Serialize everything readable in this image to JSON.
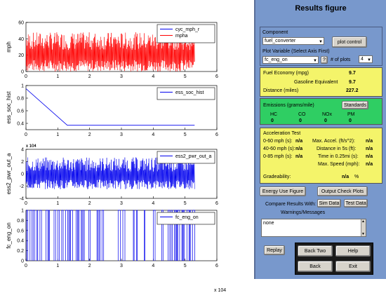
{
  "panel": {
    "title": "Results figure",
    "component_label": "Component",
    "component_value": "fuel_converter",
    "plot_control_label": "plot control",
    "plot_variable_label": "Plot Variable (Select Axis First)",
    "plot_variable_value": "fc_eng_on",
    "help_q": "?",
    "num_plots_label": "# of plots",
    "num_plots_value": "4",
    "fuel_economy_label": "Fuel Economy (mpg)",
    "fuel_economy_value": "9.7",
    "gas_equiv_label": "Gasoline Equivalent",
    "gas_equiv_value": "9.7",
    "distance_label": "Distance (miles)",
    "distance_value": "227.2",
    "emissions_label": "Emissions (grams/mile)",
    "standards_label": "Standards",
    "emissions": [
      {
        "name": "HC",
        "value": "0"
      },
      {
        "name": "CO",
        "value": "0"
      },
      {
        "name": "NOx",
        "value": "0"
      },
      {
        "name": "PM",
        "value": "0"
      }
    ],
    "accel_title": "Acceleration Test",
    "accel_left": [
      {
        "label": "0-60 mph (s):",
        "value": "n/a"
      },
      {
        "label": "40-60 mph (s):",
        "value": "n/a"
      },
      {
        "label": "0-85 mph (s):",
        "value": "n/a"
      }
    ],
    "accel_right": [
      {
        "label": "Max. Accel. (ft/s^2):",
        "value": "n/a"
      },
      {
        "label": "Distance in 5s (ft):",
        "value": "n/a"
      },
      {
        "label": "Time in 0.25mi (s):",
        "value": "n/a"
      },
      {
        "label": "Max. Speed (mph):",
        "value": "n/a"
      }
    ],
    "gradeability_label": "Gradeability:",
    "gradeability_value": "n/a",
    "gradeability_unit": "%",
    "energy_use_label": "Energy Use Figure",
    "output_check_label": "Output Check Plots",
    "compare_label": "Compare Results With:",
    "sim_data_label": "Sim Data",
    "test_data_label": "Test Data",
    "warnings_label": "Warnings/Messages",
    "warnings_value": "none",
    "replay_label": "Replay",
    "back_two_label": "Back Two",
    "help_label": "Help",
    "back_label": "Back",
    "exit_label": "Exit"
  },
  "colors": {
    "panel_bg": "#7898cc",
    "yellow": "#f4f46a",
    "green": "#2fce63",
    "red_series": "#ff0000",
    "blue_series": "#0000ee"
  },
  "chart_data": [
    {
      "type": "line",
      "ylabel": "mph",
      "xlim": [
        0,
        6
      ],
      "ylim": [
        0,
        60
      ],
      "yticks": [
        "0",
        "20",
        "40",
        "60"
      ],
      "xticks": [
        "0",
        "1",
        "2",
        "3",
        "4",
        "5",
        "6"
      ],
      "legend": [
        "cyc_mph_r",
        "mpha"
      ],
      "legend_placement": "top-right",
      "series": [
        {
          "name": "cyc_mph_r",
          "color": "#0000ee"
        },
        {
          "name": "mpha",
          "color": "#ff0000",
          "range": [
            0,
            48
          ],
          "x_end": 5.3
        }
      ]
    },
    {
      "type": "line",
      "ylabel": "ess_soc_hist",
      "xlim": [
        0,
        6
      ],
      "ylim": [
        0.3,
        1.0
      ],
      "yticks": [
        "0.4",
        "0.6",
        "0.8",
        "1"
      ],
      "xticks": [
        "0",
        "1",
        "2",
        "3",
        "4",
        "5",
        "6"
      ],
      "legend": [
        "ess_soc_hist"
      ],
      "legend_placement": "top-right",
      "series": [
        {
          "name": "ess_soc_hist",
          "color": "#0000ee",
          "x": [
            0,
            1.3,
            5.3
          ],
          "y": [
            0.95,
            0.37,
            0.37
          ]
        }
      ]
    },
    {
      "type": "line",
      "ylabel": "ess2_pwr_out_a",
      "xlim": [
        0,
        6
      ],
      "ylim": [
        -4,
        4
      ],
      "yticks": [
        "-4",
        "-2",
        "0",
        "2",
        "4"
      ],
      "xticks": [
        "0",
        "1",
        "2",
        "3",
        "4",
        "5",
        "6"
      ],
      "exponent": "x 10^4",
      "legend": [
        "ess2_pwr_out_a"
      ],
      "legend_placement": "top-right",
      "series": [
        {
          "name": "ess2_pwr_out_a",
          "color": "#0000ee",
          "range": [
            -2.5,
            2.7
          ],
          "x_end": 5.3
        }
      ]
    },
    {
      "type": "line",
      "ylabel": "fc_eng_on",
      "xlim": [
        0,
        6
      ],
      "ylim": [
        0,
        1
      ],
      "yticks": [
        "0",
        "0.2",
        "0.4",
        "0.6",
        "0.8",
        "1"
      ],
      "xticks": [
        "0",
        "1",
        "2",
        "3",
        "4",
        "5",
        "6"
      ],
      "legend": [
        "fc_eng_on"
      ],
      "legend_placement": "top-right",
      "series": [
        {
          "name": "fc_eng_on",
          "color": "#0000ee",
          "range": [
            0,
            1
          ],
          "x_end": 5.3
        }
      ]
    }
  ],
  "x_exponent": "x 10^4",
  "xtick_exp_partial": "x 10⁴"
}
